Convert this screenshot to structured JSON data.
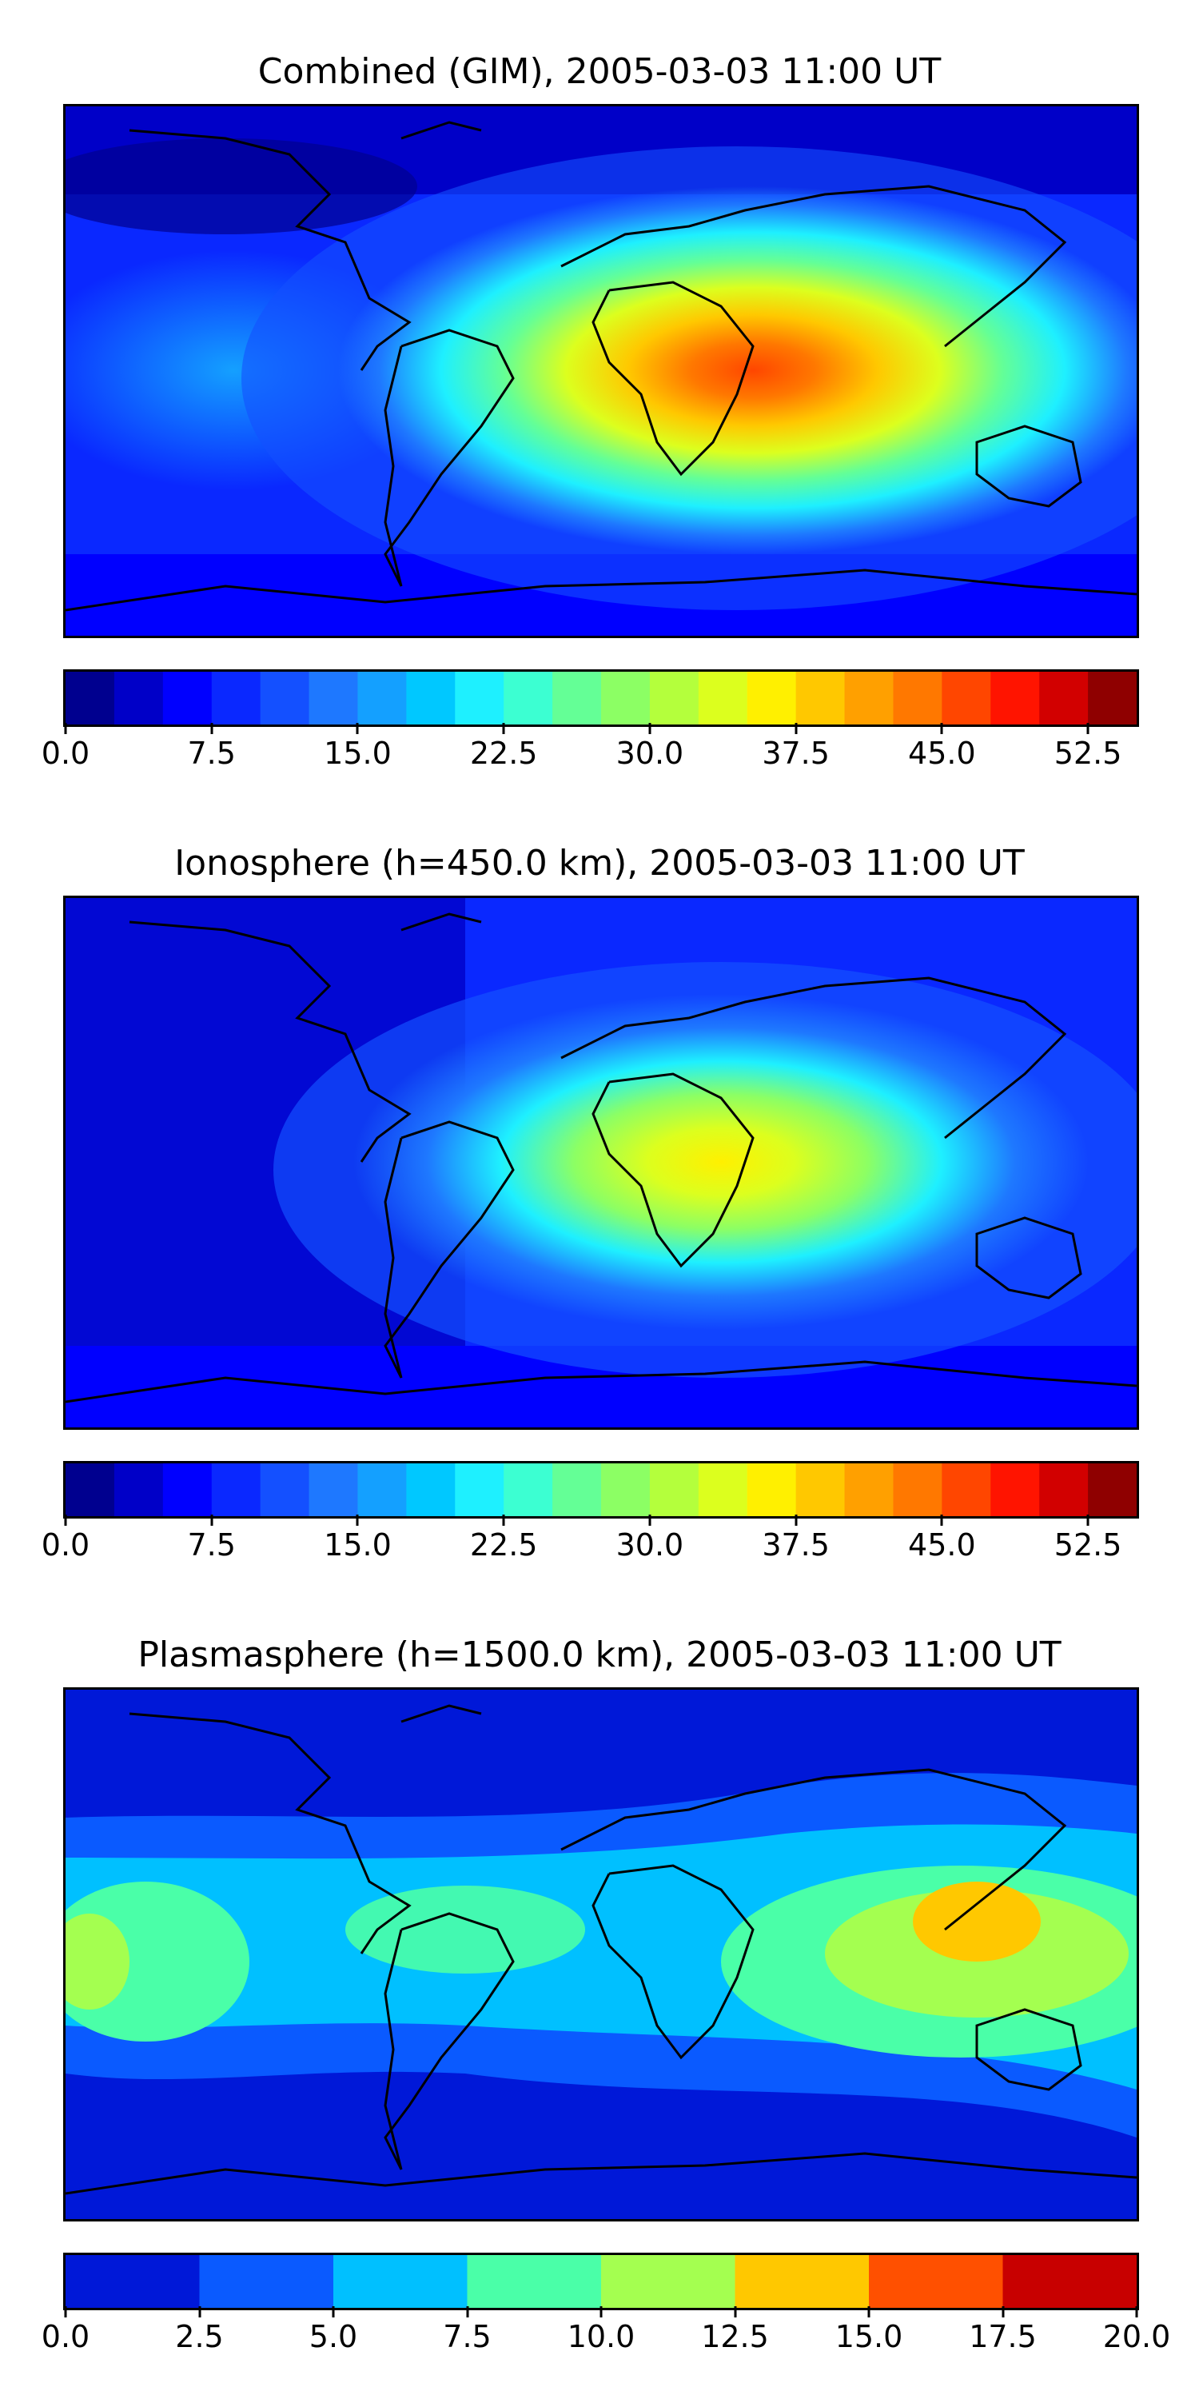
{
  "chart_data": [
    {
      "type": "heatmap",
      "title": "Combined (GIM), 2005-03-03 11:00 UT",
      "colorbar": {
        "ticks": [
          "0.0",
          "7.5",
          "15.0",
          "22.5",
          "30.0",
          "37.5",
          "45.0",
          "52.5"
        ],
        "range": [
          0,
          55
        ],
        "levels": 22,
        "level_step": 2.5
      },
      "max_value_region": "Indian Ocean east of Africa",
      "approx_max": 47
    },
    {
      "type": "heatmap",
      "title": "Ionosphere  (h=450.0 km), 2005-03-03 11:00 UT",
      "colorbar": {
        "ticks": [
          "0.0",
          "7.5",
          "15.0",
          "22.5",
          "30.0",
          "37.5",
          "45.0",
          "52.5"
        ],
        "range": [
          0,
          55
        ],
        "levels": 22,
        "level_step": 2.5
      },
      "max_value_region": "East Africa / Arabian Sea",
      "approx_max": 35
    },
    {
      "type": "heatmap",
      "title": "Plasmasphere (h=1500.0 km), 2005-03-03 11:00 UT",
      "colorbar": {
        "ticks": [
          "0.0",
          "2.5",
          "5.0",
          "7.5",
          "10.0",
          "12.5",
          "15.0",
          "17.5",
          "20.0"
        ],
        "range": [
          0,
          20
        ],
        "levels": 8,
        "level_step": 2.5
      },
      "max_value_region": "Southeast Asia / Philippines",
      "approx_max": 15
    }
  ],
  "colors": {
    "jet22": [
      "#00008f",
      "#0000c8",
      "#0000ff",
      "#0a28ff",
      "#1450ff",
      "#1e78ff",
      "#14a0ff",
      "#00c8ff",
      "#1ef0ff",
      "#3cffd2",
      "#64ff96",
      "#8cff64",
      "#b4ff3c",
      "#dcff1e",
      "#fff000",
      "#ffc800",
      "#ffa000",
      "#ff7800",
      "#ff4600",
      "#ff1400",
      "#d20000",
      "#8f0000"
    ],
    "jet8": [
      "#0018d8",
      "#0a5aff",
      "#00c0ff",
      "#4affa8",
      "#a4ff50",
      "#ffc800",
      "#ff5000",
      "#c80000"
    ],
    "coastline": "#000000"
  }
}
